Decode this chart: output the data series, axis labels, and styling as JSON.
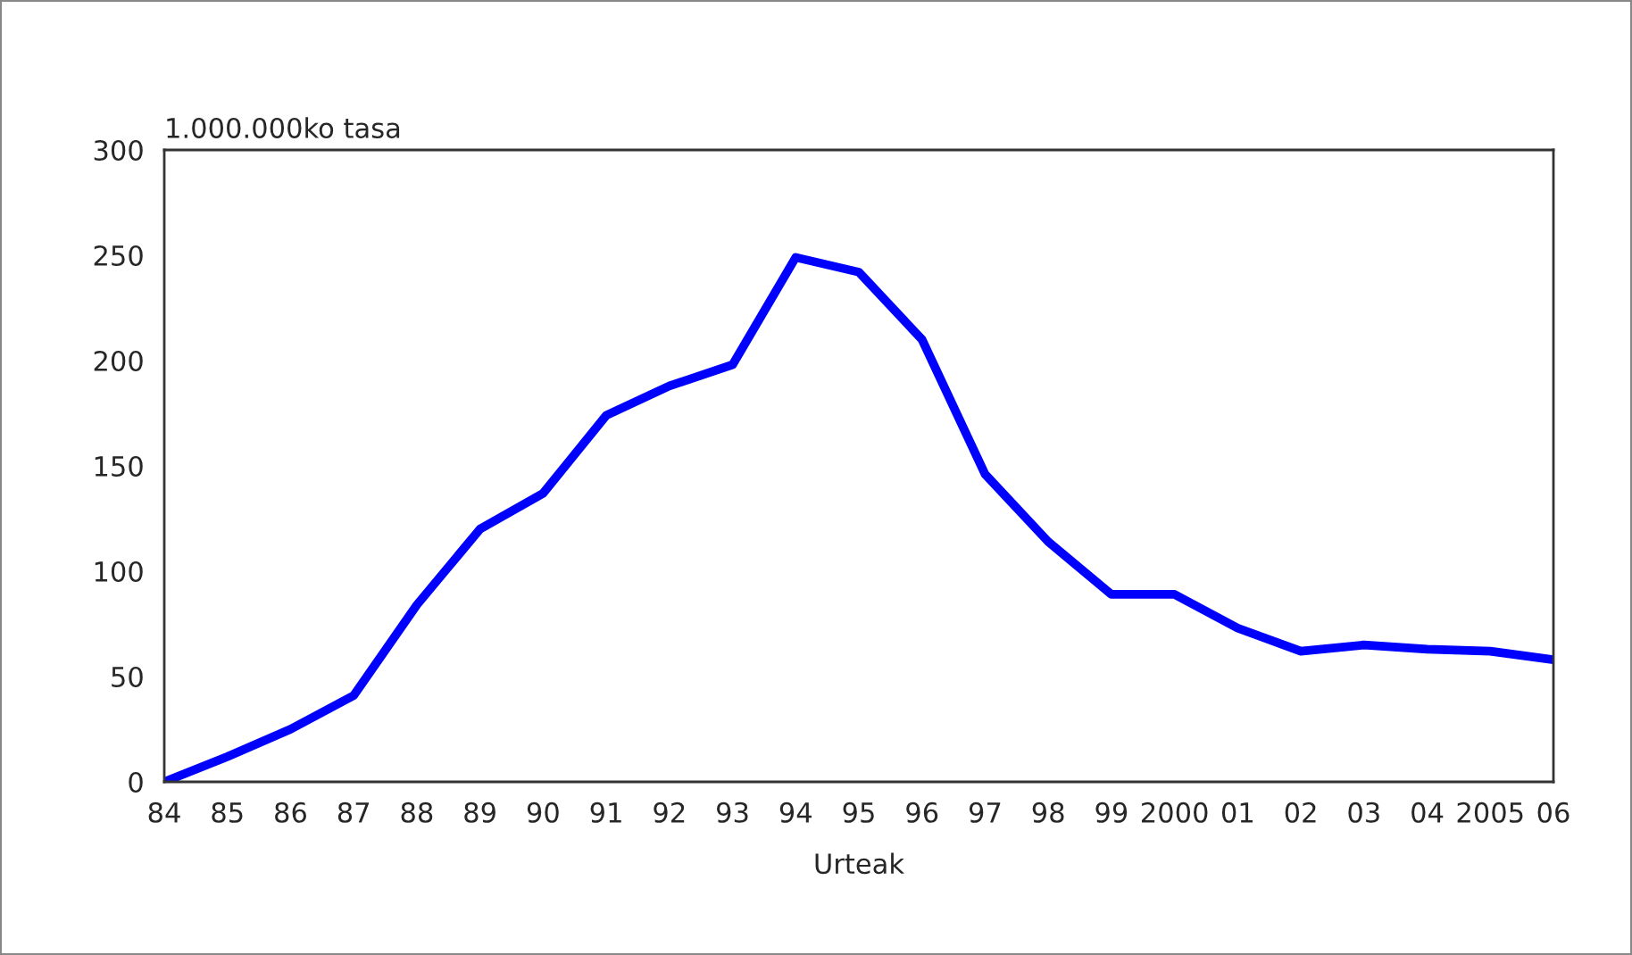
{
  "chart_data": {
    "type": "line",
    "ylabel": "1.000.000ko tasa",
    "xlabel": "Urteak",
    "categories": [
      "84",
      "85",
      "86",
      "87",
      "88",
      "89",
      "90",
      "91",
      "92",
      "93",
      "94",
      "95",
      "96",
      "97",
      "98",
      "99",
      "2000",
      "01",
      "02",
      "03",
      "04",
      "2005",
      "06"
    ],
    "series": [
      {
        "color": "#0000ff",
        "values": [
          0,
          12,
          25,
          41,
          84,
          120,
          137,
          174,
          188,
          198,
          249,
          242,
          210,
          146,
          114,
          89,
          89,
          73,
          62,
          65,
          63,
          62,
          58
        ]
      }
    ],
    "ylim": [
      0,
      300
    ],
    "yticks": [
      0,
      50,
      100,
      150,
      200,
      250,
      300
    ],
    "grid": false,
    "marker": "none",
    "line_style": "solid"
  }
}
